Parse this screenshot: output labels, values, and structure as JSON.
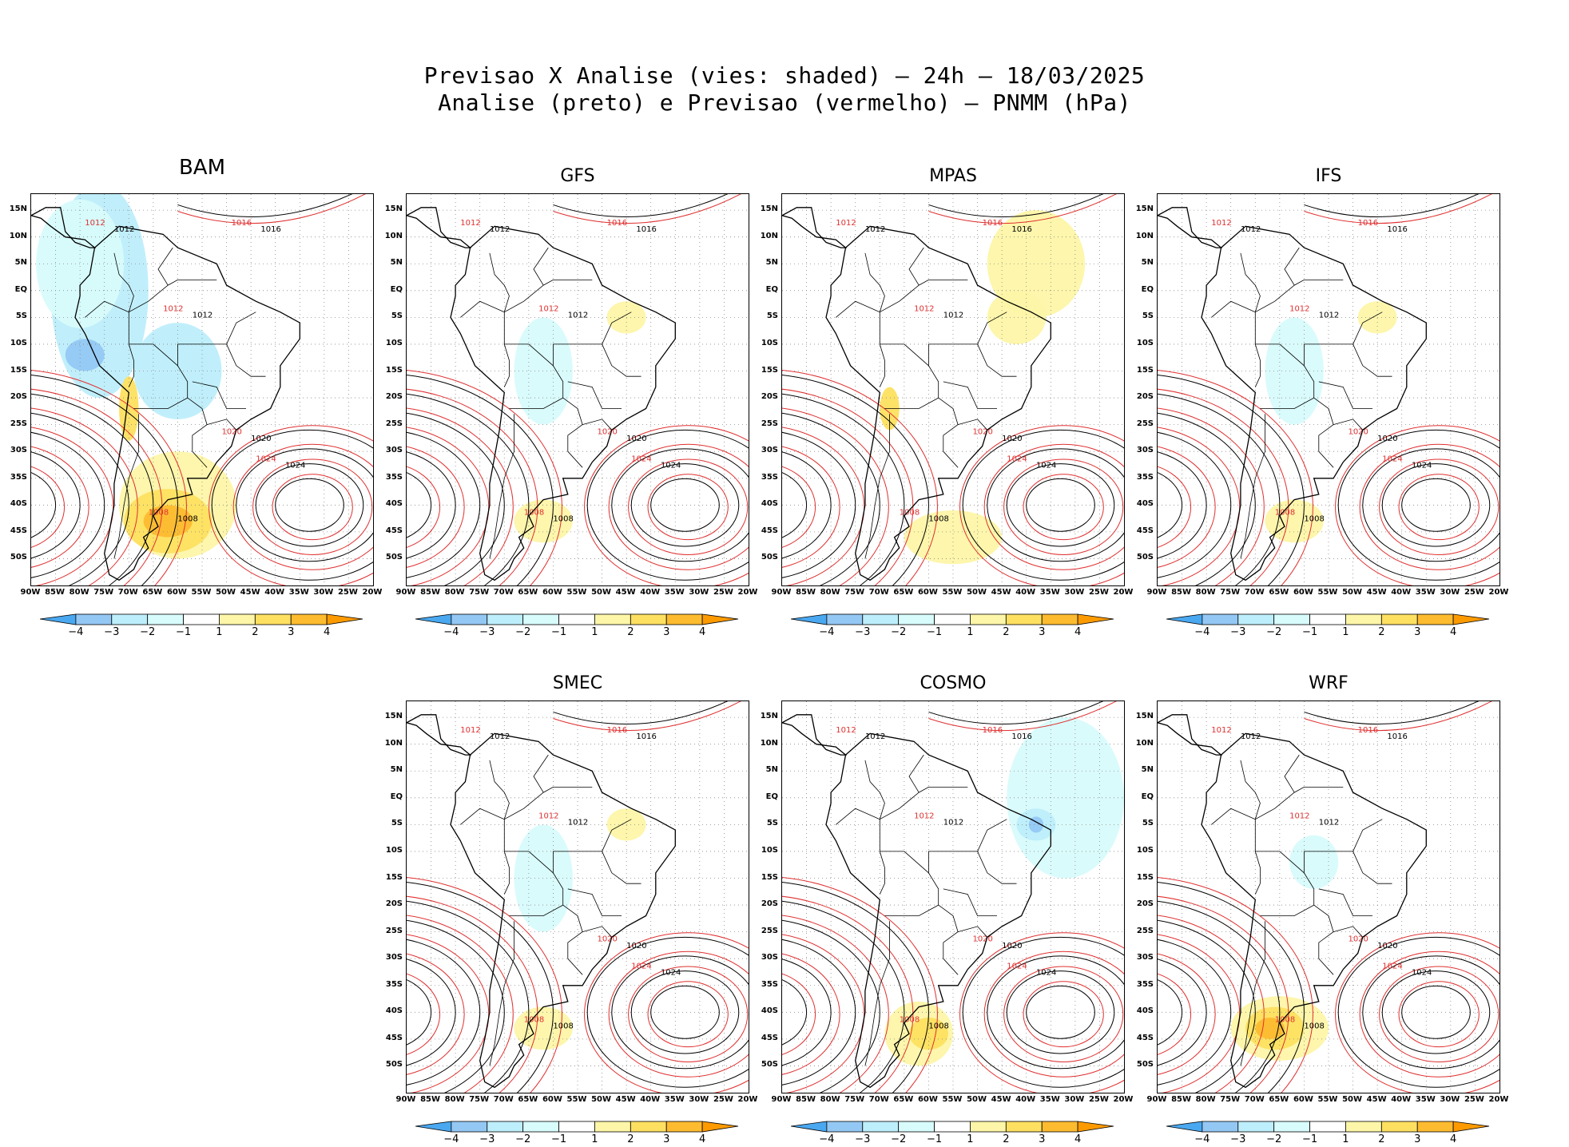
{
  "figure": {
    "title_line1": "Previsao X Analise (vies: shaded) – 24h – 18/03/2025",
    "title_line2": "Analise (preto) e Previsao (vermelho) – PNMM (hPa)"
  },
  "lat_labels": [
    "15N",
    "10N",
    "5N",
    "EQ",
    "5S",
    "10S",
    "15S",
    "20S",
    "25S",
    "30S",
    "35S",
    "40S",
    "45S",
    "50S"
  ],
  "lon_labels": [
    "90W",
    "85W",
    "80W",
    "75W",
    "70W",
    "65W",
    "60W",
    "55W",
    "50W",
    "45W",
    "40W",
    "35W",
    "30W",
    "25W",
    "20W"
  ],
  "colorbar": {
    "labels": [
      "−4",
      "−3",
      "−2",
      "−1",
      "1",
      "2",
      "3",
      "4"
    ],
    "colors": [
      "#4aa8f0",
      "#94c8f4",
      "#bdeefb",
      "#d8fbfb",
      "#ffffff",
      "#fdf6a8",
      "#fde060",
      "#fdbb30",
      "#fd9a00"
    ]
  },
  "panels": [
    {
      "name": "BAM",
      "bias": "warm-south-cool-north"
    },
    {
      "name": "GFS",
      "bias": "mild"
    },
    {
      "name": "MPAS",
      "bias": "warm-east"
    },
    {
      "name": "IFS",
      "bias": "mild"
    },
    {
      "name": "SMEC",
      "bias": "mild"
    },
    {
      "name": "COSMO",
      "bias": "cool-east"
    },
    {
      "name": "WRF",
      "bias": "warm-south"
    }
  ],
  "isobar_labels": {
    "analysis": [
      "1016",
      "1012",
      "1020",
      "1024",
      "1008"
    ],
    "forecast": [
      "1016",
      "1012",
      "1020",
      "1024",
      "1008"
    ]
  }
}
